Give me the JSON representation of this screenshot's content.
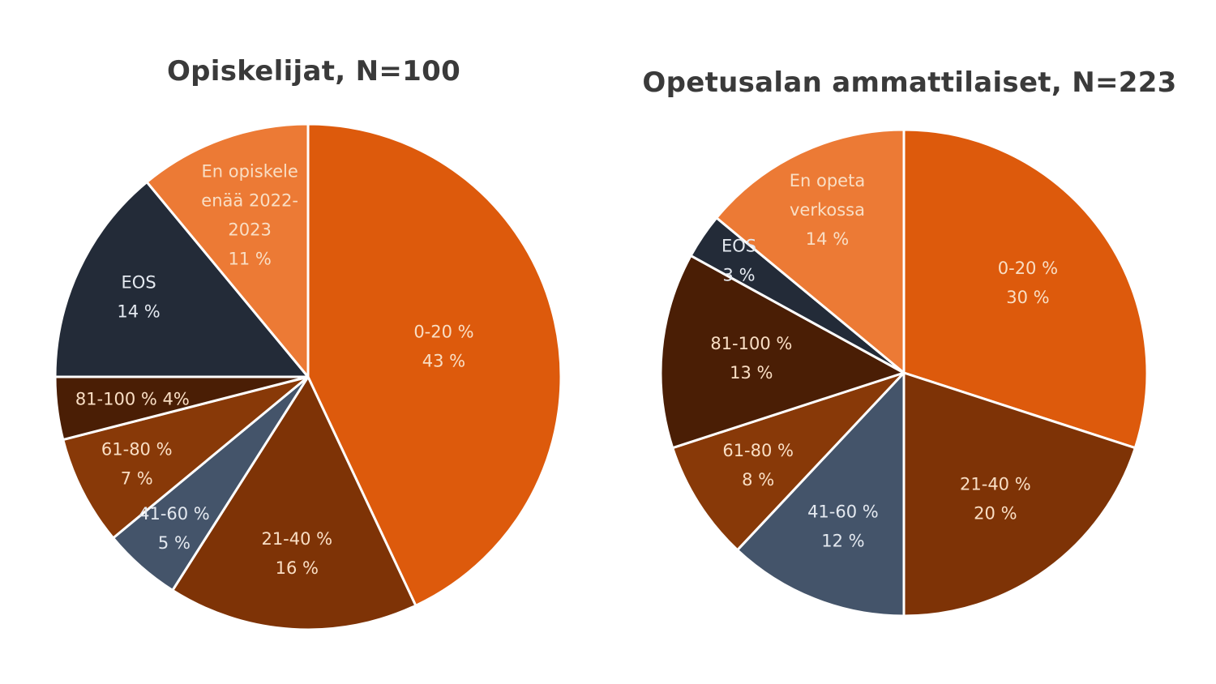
{
  "chart_data": [
    {
      "type": "pie",
      "title": "Opiskelijat, N=100",
      "categories": [
        "0-20 %",
        "21-40 %",
        "41-60 %",
        "61-80 %",
        "81-100 %",
        "EOS",
        "En opiskele enää 2022-2023"
      ],
      "values": [
        43,
        16,
        5,
        7,
        4,
        14,
        11
      ],
      "label_lines": [
        [
          "0-20 %",
          "43 %"
        ],
        [
          "21-40 %",
          "16 %"
        ],
        [
          "41-60 %",
          "5 %"
        ],
        [
          "61-80 %",
          "7 %"
        ],
        [
          "81-100 % 4%"
        ],
        [
          "EOS",
          "14 %"
        ],
        [
          "En opiskele",
          "enää 2022-",
          "2023",
          "11 %"
        ]
      ],
      "colors": [
        "#DD5A0C",
        "#7E3306",
        "#44546A",
        "#883908",
        "#4A1E05",
        "#232B38",
        "#EC7A35"
      ],
      "start": "top",
      "direction": "clockwise"
    },
    {
      "type": "pie",
      "title": "Opetusalan ammattilaiset, N=223",
      "categories": [
        "0-20 %",
        "21-40 %",
        "41-60 %",
        "61-80 %",
        "81-100 %",
        "EOS",
        "En opeta verkossa"
      ],
      "values": [
        30,
        20,
        12,
        8,
        13,
        3,
        14
      ],
      "label_lines": [
        [
          "0-20 %",
          "30 %"
        ],
        [
          "21-40 %",
          "20 %"
        ],
        [
          "41-60 %",
          "12 %"
        ],
        [
          "61-80 %",
          "8 %"
        ],
        [
          "81-100 %",
          "13 %"
        ],
        [
          "EOS",
          "3 %"
        ],
        [
          "En opeta",
          "verkossa",
          "14 %"
        ]
      ],
      "colors": [
        "#DD5A0C",
        "#7E3306",
        "#44546A",
        "#883908",
        "#4A1E05",
        "#232B38",
        "#EC7A35"
      ],
      "start": "top",
      "direction": "clockwise"
    }
  ]
}
